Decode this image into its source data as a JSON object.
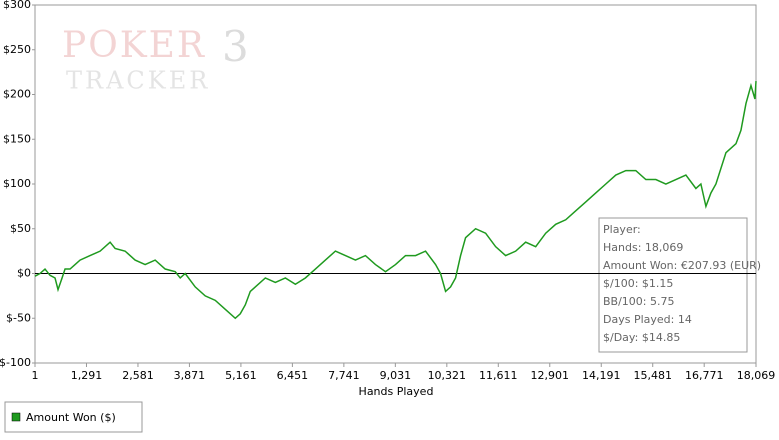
{
  "chart_data": {
    "type": "line",
    "watermark": {
      "word1": "POKER",
      "digit": "3",
      "word2": "TRACKER"
    },
    "x_label": "Hands Played",
    "x": [
      1,
      126,
      252,
      377,
      503,
      578,
      679,
      754,
      879,
      1005,
      1130,
      1381,
      1632,
      1883,
      2009,
      2259,
      2510,
      2761,
      3012,
      3263,
      3514,
      3640,
      3765,
      4016,
      4267,
      4518,
      4769,
      5020,
      5145,
      5271,
      5396,
      5522,
      5773,
      6024,
      6275,
      6526,
      6776,
      7027,
      7278,
      7529,
      7780,
      8031,
      8282,
      8533,
      8784,
      9035,
      9286,
      9537,
      9788,
      10039,
      10164,
      10290,
      10415,
      10540,
      10666,
      10791,
      11042,
      11293,
      11544,
      11795,
      12046,
      12297,
      12548,
      12799,
      13050,
      13301,
      13552,
      13803,
      14054,
      14305,
      14556,
      14807,
      15057,
      15308,
      15559,
      15810,
      16061,
      16312,
      16563,
      16688,
      16814,
      16939,
      17065,
      17316,
      17567,
      17692,
      17818,
      17943,
      18043,
      18069
    ],
    "series": [
      {
        "name": "Amount Won ($)",
        "color": "#1f9a1f",
        "values": [
          -3,
          0,
          5,
          -2,
          -5,
          -18,
          -5,
          5,
          5,
          10,
          15,
          20,
          25,
          35,
          28,
          25,
          15,
          10,
          15,
          5,
          2,
          -5,
          0,
          -15,
          -25,
          -30,
          -40,
          -50,
          -45,
          -35,
          -20,
          -15,
          -5,
          -10,
          -5,
          -12,
          -5,
          5,
          15,
          25,
          20,
          15,
          20,
          10,
          2,
          10,
          20,
          20,
          25,
          10,
          0,
          -20,
          -15,
          -5,
          20,
          40,
          50,
          45,
          30,
          20,
          25,
          35,
          30,
          45,
          55,
          60,
          70,
          80,
          90,
          100,
          110,
          115,
          115,
          105,
          105,
          100,
          105,
          110,
          95,
          100,
          75,
          90,
          100,
          135,
          145,
          160,
          190,
          210,
          195,
          215
        ]
      }
    ],
    "xlim": [
      1,
      18069
    ],
    "xticks": [
      1,
      {
        "value": 1291,
        "label": "1,291"
      },
      {
        "value": 2581,
        "label": "2,581"
      },
      {
        "value": 3871,
        "label": "3,871"
      },
      {
        "value": 5161,
        "label": "5,161"
      },
      {
        "value": 6451,
        "label": "6,451"
      },
      {
        "value": 7741,
        "label": "7,741"
      },
      {
        "value": 9031,
        "label": "9,031"
      },
      {
        "value": 10321,
        "label": "10,321"
      },
      {
        "value": 11611,
        "label": "11,611"
      },
      {
        "value": 12901,
        "label": "12,901"
      },
      {
        "value": 14191,
        "label": "14,191"
      },
      {
        "value": 15481,
        "label": "15,481"
      },
      {
        "value": 16771,
        "label": "16,771"
      },
      {
        "value": 18069,
        "label": "18,069"
      }
    ],
    "ylim": [
      -100,
      300
    ],
    "yticks": [
      {
        "value": -100,
        "label": "$-100"
      },
      {
        "value": -50,
        "label": "$-50"
      },
      {
        "value": 0,
        "label": "$0"
      },
      {
        "value": 50,
        "label": "$50"
      },
      {
        "value": 100,
        "label": "$100"
      },
      {
        "value": 150,
        "label": "$150"
      },
      {
        "value": 200,
        "label": "$200"
      },
      {
        "value": 250,
        "label": "$250"
      },
      {
        "value": 300,
        "label": "$300"
      }
    ],
    "tooltip": [
      "Player:",
      "Hands: 18,069",
      "Amount Won: €207.93 (EUR)",
      "$/100: $1.15",
      "BB/100: 5.75",
      "Days Played: 14",
      "$/Day: $14.85"
    ]
  }
}
